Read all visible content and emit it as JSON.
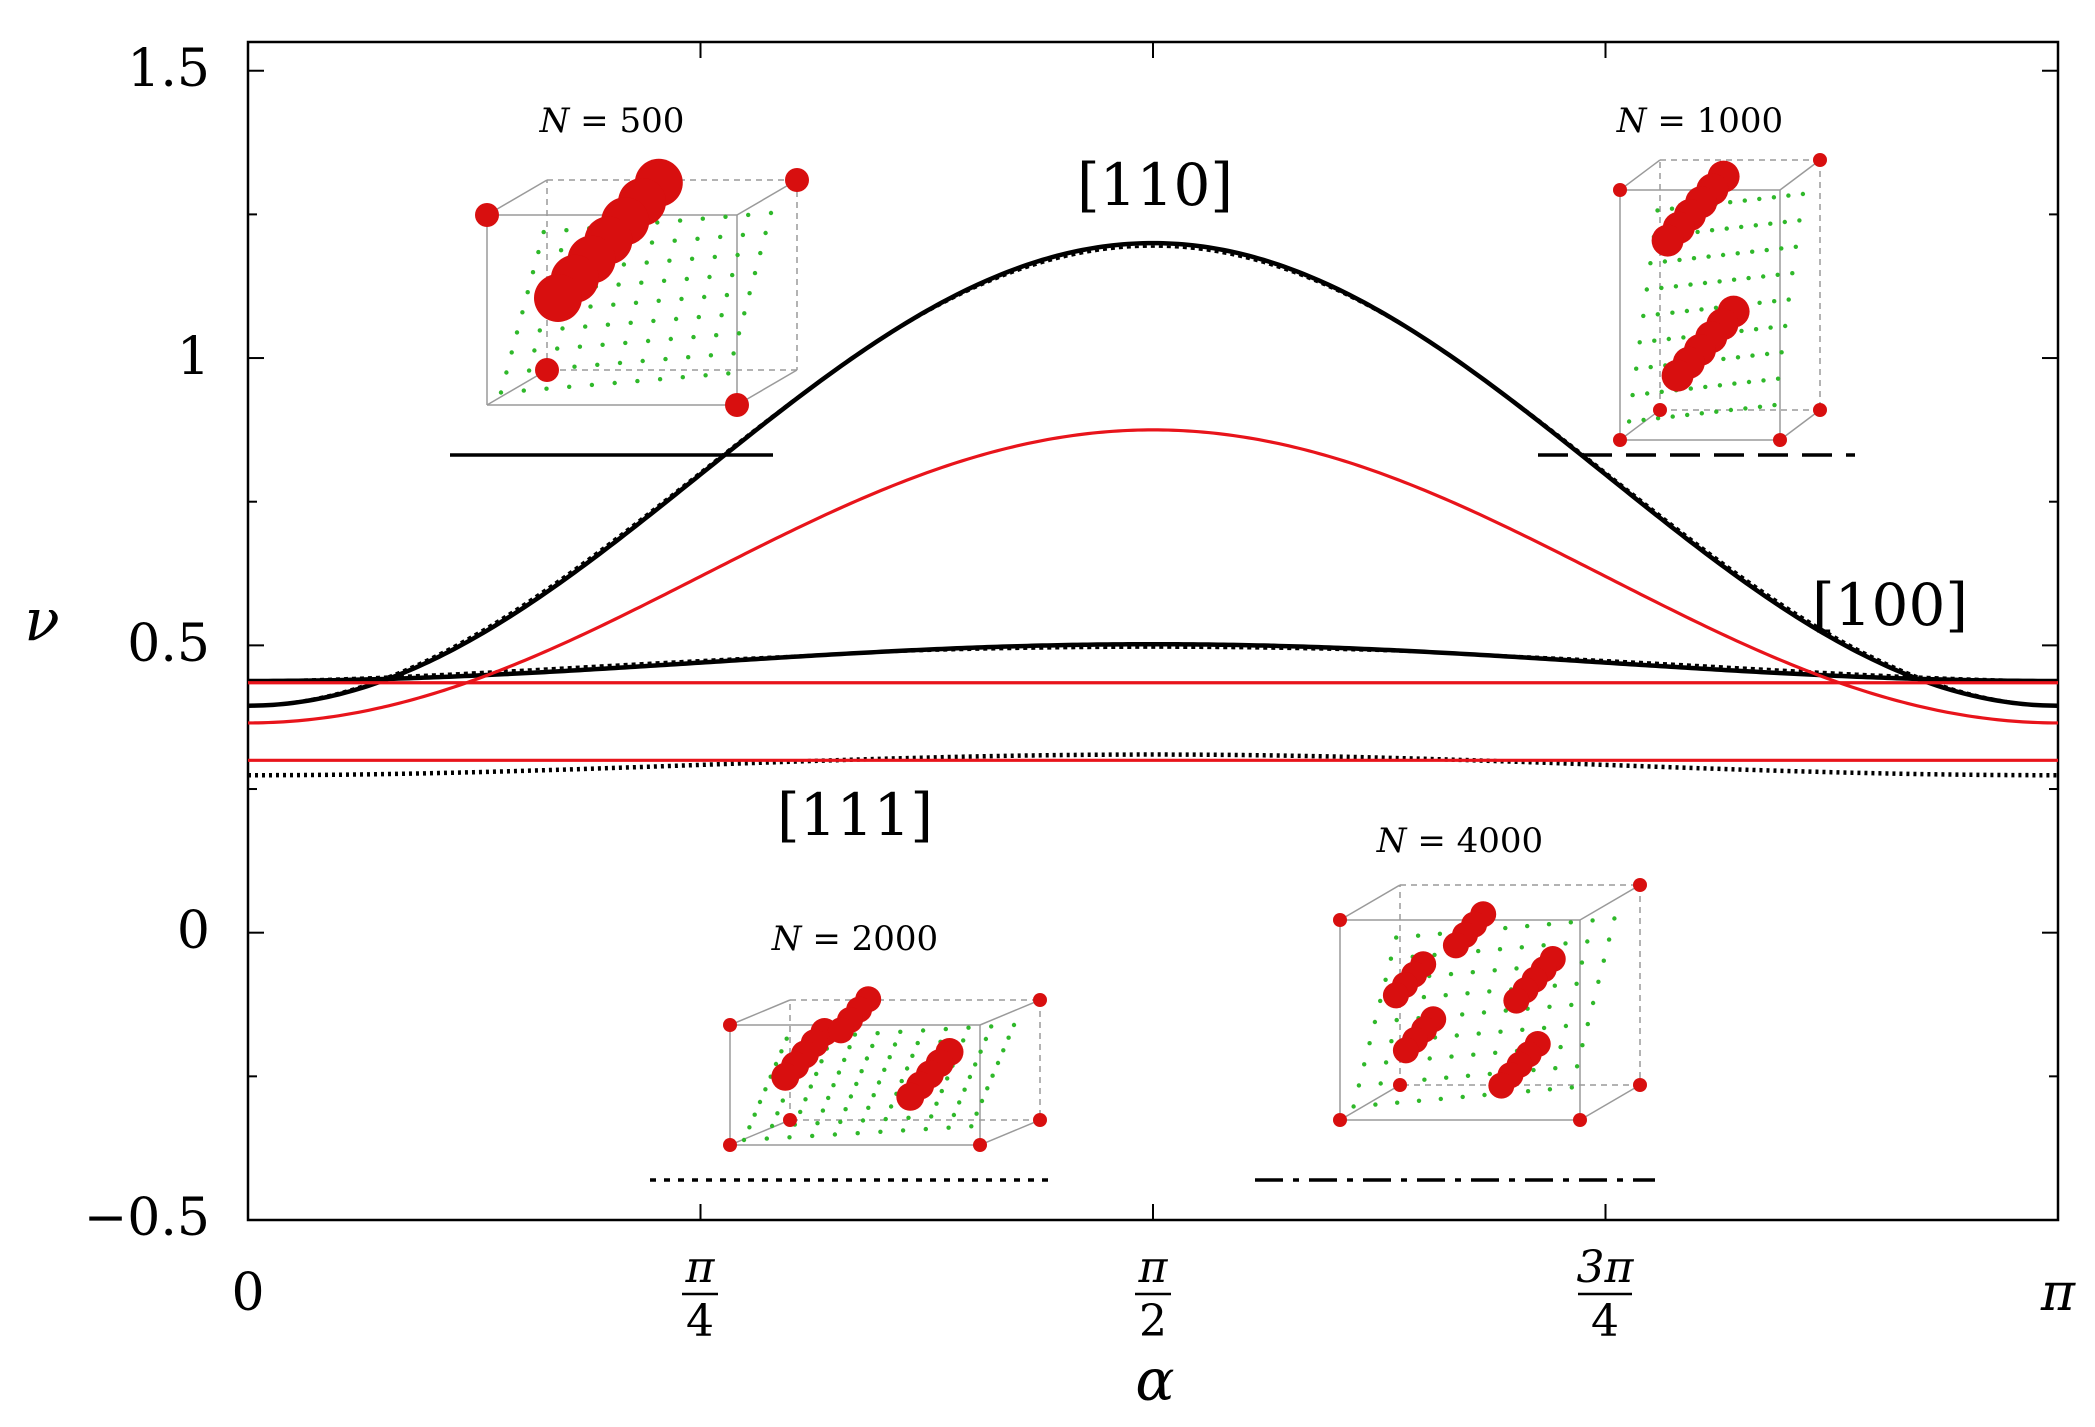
{
  "chart_data": {
    "type": "line",
    "title": "",
    "xlabel": "α",
    "ylabel": "ν",
    "xlim": [
      0,
      3.14159265
    ],
    "ylim": [
      -0.5,
      1.55
    ],
    "x_ticks": [
      {
        "value": 0,
        "label": "0"
      },
      {
        "value": 0.785398,
        "numerator": "π",
        "denominator": "4"
      },
      {
        "value": 1.570796,
        "numerator": "π",
        "denominator": "2"
      },
      {
        "value": 2.356194,
        "numerator": "3π",
        "denominator": "4"
      },
      {
        "value": 3.141593,
        "label": "π"
      }
    ],
    "y_ticks": [
      {
        "value": 1.5,
        "label": "1.5"
      },
      {
        "value": 1,
        "label": "1"
      },
      {
        "value": 0.5,
        "label": "0.5"
      },
      {
        "value": 0,
        "label": "0"
      },
      {
        "value": -0.5,
        "label": "−0.5"
      }
    ],
    "series": [
      {
        "name": "[110] simulation",
        "color": "#000000",
        "style": "solid-thick",
        "model": {
          "a": 0.395,
          "b": 0.805,
          "c": 0.0
        }
      },
      {
        "name": "[100] simulation",
        "color": "#000000",
        "style": "solid-thick",
        "model": {
          "a": 0.47,
          "b": 0.0,
          "c": -0.032
        }
      },
      {
        "name": "[111] simulation",
        "color": "#000000",
        "style": "dotted-thick",
        "model": {
          "a": 0.292,
          "b": 0.0,
          "c": -0.018
        }
      },
      {
        "name": "[110] theory",
        "color": "#e8141b",
        "style": "solid",
        "model": {
          "a": 0.365,
          "b": 0.51,
          "c": 0.0
        }
      },
      {
        "name": "[100] theory",
        "color": "#e8141b",
        "style": "solid",
        "model": {
          "a": 0.435,
          "b": 0.0,
          "c": 0.0
        }
      },
      {
        "name": "[111] theory",
        "color": "#e8141b",
        "style": "solid",
        "model": {
          "a": 0.3,
          "b": 0.0,
          "c": 0.0
        }
      }
    ],
    "direction_labels": [
      {
        "text": "[110]",
        "series": "[110] simulation"
      },
      {
        "text": "[100]",
        "series": "[100] simulation"
      },
      {
        "text": "[111]",
        "series": "[111] simulation"
      }
    ],
    "legend": [
      {
        "prefix": "N",
        "text": " = 500",
        "line_style": "solid"
      },
      {
        "prefix": "N",
        "text": " = 1000",
        "line_style": "dashed"
      },
      {
        "prefix": "N",
        "text": " = 2000",
        "line_style": "dotted"
      },
      {
        "prefix": "N",
        "text": " = 4000",
        "line_style": "dash-dot"
      }
    ],
    "colors": {
      "theory": "#e8141b",
      "simulation": "#000000",
      "lattice": "#2fb82a",
      "defect": "#d80f0f"
    }
  }
}
